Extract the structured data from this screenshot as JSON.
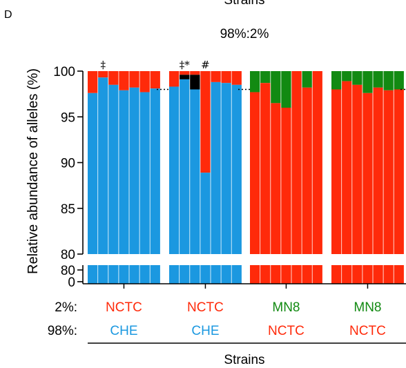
{
  "panel_label": "D",
  "top_title": "Strains",
  "ratio_title": "98%:2%",
  "bottom_title": "Strains",
  "ylabel": "Relative abundance of alleles (%)",
  "row_prefixes": [
    "2%:",
    "98%:"
  ],
  "colors": {
    "CHE": "#1b98e0",
    "NCTC": "#ff2a0a",
    "MN8": "#128a12",
    "black": "#000000"
  },
  "chart_data": {
    "type": "bar",
    "stacked": true,
    "title": "Strains",
    "subtitle": "98%:2%",
    "xlabel": "Strains",
    "ylabel": "Relative abundance of alleles (%)",
    "y_axis_segments": [
      {
        "range": [
          80,
          100
        ],
        "ticks": [
          "80",
          "85",
          "90",
          "95",
          "100"
        ]
      },
      {
        "range": [
          0,
          80
        ],
        "ticks": [
          "0",
          "80"
        ]
      }
    ],
    "reference_line": 98,
    "groups": [
      {
        "label_2pct": "NCTC",
        "label_98pct": "CHE",
        "major": "CHE",
        "minor": "NCTC",
        "major_values": [
          97.6,
          99.3,
          98.5,
          97.9,
          98.2,
          97.7,
          98.1
        ],
        "black_values": [
          0,
          0,
          0,
          0,
          0,
          0,
          0
        ],
        "annotations": [
          {
            "bar": 1,
            "text": "‡"
          }
        ]
      },
      {
        "label_2pct": "NCTC",
        "label_98pct": "CHE",
        "major": "CHE",
        "minor": "NCTC",
        "major_values": [
          98.3,
          99.1,
          98.0,
          88.9,
          98.8,
          98.7,
          98.5
        ],
        "black_values": [
          0,
          0.5,
          1.6,
          0,
          0,
          0,
          0
        ],
        "annotations": [
          {
            "bar": 1,
            "text": "‡*"
          },
          {
            "bar": 3,
            "text": "#"
          }
        ]
      },
      {
        "label_2pct": "MN8",
        "label_98pct": "NCTC",
        "major": "NCTC",
        "minor": "MN8",
        "major_values": [
          97.7,
          98.7,
          96.5,
          96.0,
          100,
          98.2,
          100
        ],
        "black_values": [
          0,
          0,
          0,
          0,
          0,
          0,
          0
        ],
        "annotations": []
      },
      {
        "label_2pct": "MN8",
        "label_98pct": "NCTC",
        "major": "NCTC",
        "minor": "MN8",
        "major_values": [
          98.0,
          98.9,
          98.5,
          97.6,
          98.2,
          97.9,
          98.0
        ],
        "black_values": [
          0,
          0,
          0,
          0,
          0,
          0,
          0
        ],
        "annotations": []
      }
    ]
  }
}
